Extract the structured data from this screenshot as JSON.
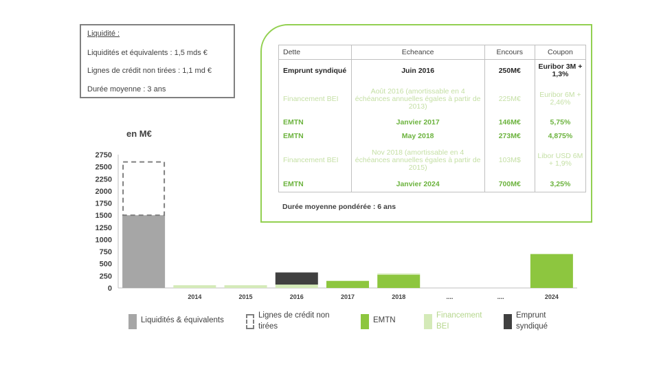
{
  "liquidity": {
    "title": "Liquidité :",
    "line1": "Liquidités et équivalents : 1,5 mds €",
    "line2": "Lignes de crédit non tirées : 1,1 md €",
    "line3": "Durée moyenne : 3 ans"
  },
  "debt_table": {
    "headers": [
      "Dette",
      "Echeance",
      "Encours",
      "Coupon"
    ],
    "rows": [
      {
        "kind": "synd",
        "dette": "Emprunt syndiqué",
        "echeance": "Juin 2016",
        "encours": "250M€",
        "coupon": "Euribor 3M + 1,3%"
      },
      {
        "kind": "bei",
        "dette": "Financement BEI",
        "echeance": "Août 2016 (amortissable en 4 échéances annuelles égales à partir de 2013)",
        "encours": "225M€",
        "coupon": "Euribor 6M + 2,46%"
      },
      {
        "kind": "emtn",
        "dette": "EMTN",
        "echeance": "Janvier 2017",
        "encours": "146M€",
        "coupon": "5,75%"
      },
      {
        "kind": "emtn",
        "dette": "EMTN",
        "echeance": "May 2018",
        "encours": "273M€",
        "coupon": "4,875%"
      },
      {
        "kind": "bei",
        "dette": "Financement BEI",
        "echeance": "Nov 2018 (amortissable en 4 échéances annuelles égales à partir de 2015)",
        "encours": "103M$",
        "coupon": "Libor USD 6M + 1,9%"
      },
      {
        "kind": "emtn",
        "dette": "EMTN",
        "echeance": "Janvier 2024",
        "encours": "700M€",
        "coupon": "3,25%"
      }
    ],
    "footer": "Durée moyenne pondérée : 6 ans"
  },
  "colors": {
    "liquidites": "#a6a6a6",
    "lignes_credit": "#7f7f7f",
    "emtn": "#8dc63f",
    "bei": "#d4eab8",
    "synd": "#404040"
  },
  "chart_data": {
    "type": "bar",
    "stacked": true,
    "unit_label": "en M€",
    "categories": [
      "",
      "2014",
      "2015",
      "2016",
      "2017",
      "2018",
      "....",
      "....",
      "2024"
    ],
    "ylim": [
      0,
      2750
    ],
    "yticks": [
      0,
      250,
      500,
      750,
      1000,
      1250,
      1500,
      1750,
      2000,
      2250,
      2500,
      2750
    ],
    "series": [
      {
        "name": "Liquidités & équivalents",
        "key": "liquidites",
        "values": [
          1500,
          0,
          0,
          0,
          0,
          0,
          0,
          0,
          0
        ]
      },
      {
        "name": "Lignes de crédit non tirées",
        "key": "lignes_credit",
        "dashed": true,
        "values": [
          1100,
          0,
          0,
          0,
          0,
          0,
          0,
          0,
          0
        ]
      },
      {
        "name": "EMTN",
        "key": "emtn",
        "values": [
          0,
          0,
          0,
          0,
          146,
          273,
          0,
          0,
          700
        ]
      },
      {
        "name": "Financement BEI",
        "key": "bei",
        "values": [
          0,
          56,
          56,
          70,
          0,
          26,
          0,
          0,
          0
        ]
      },
      {
        "name": "Emprunt syndiqué",
        "key": "synd",
        "values": [
          0,
          0,
          0,
          250,
          0,
          0,
          0,
          0,
          0
        ]
      }
    ],
    "legend_position": "bottom"
  }
}
